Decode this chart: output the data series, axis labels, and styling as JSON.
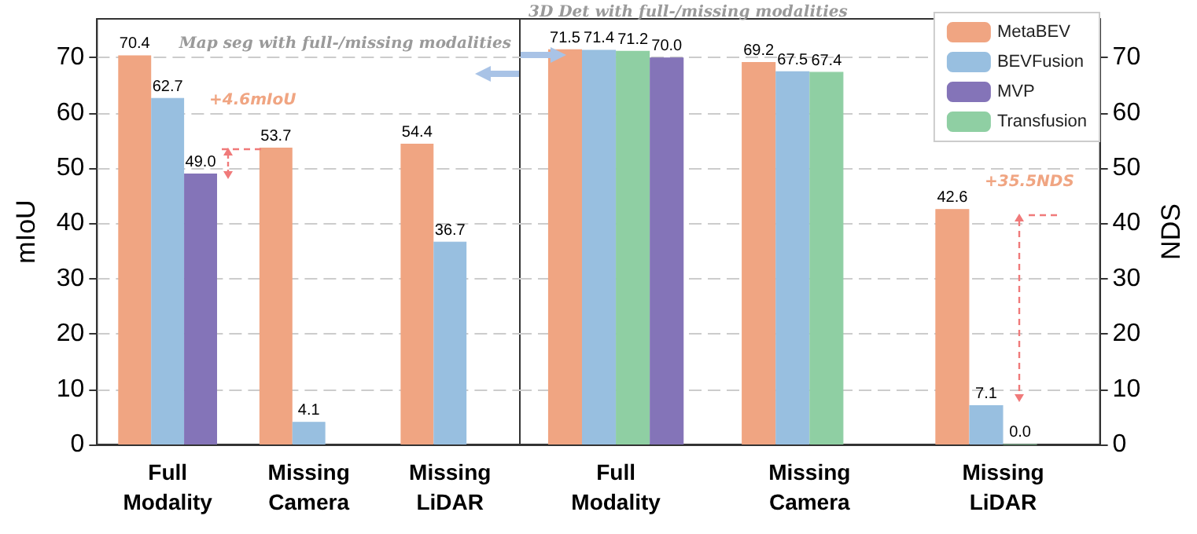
{
  "chart_data": [
    {
      "type": "bar",
      "ylabel": "mIoU",
      "categories": [
        "Full Modality",
        "Missing Camera",
        "Missing LiDAR"
      ],
      "series": [
        {
          "name": "MetaBEV",
          "color": "#f0a582",
          "values": [
            70.4,
            53.7,
            54.4
          ],
          "value_labels": [
            "70.4",
            "53.7",
            "54.4"
          ]
        },
        {
          "name": "BEVFusion",
          "color": "#98bfe0",
          "values": [
            62.7,
            4.1,
            36.7
          ],
          "value_labels": [
            "62.7",
            "4.1",
            "36.7"
          ]
        },
        {
          "name": "MVP",
          "color": "#8474b8",
          "values": [
            49.0,
            null,
            null
          ],
          "value_labels": [
            "49.0",
            null,
            null
          ]
        }
      ],
      "ylim": [
        0,
        77
      ],
      "yticks": [
        0,
        10,
        20,
        30,
        40,
        50,
        60,
        70
      ],
      "grid": "y",
      "legend": false,
      "annotations": [
        "Map seg with full-/missing modalities",
        "+4.6mIoU"
      ]
    },
    {
      "type": "bar",
      "y2label": "NDS",
      "categories": [
        "Full Modality",
        "Missing Camera",
        "Missing LiDAR"
      ],
      "series": [
        {
          "name": "MetaBEV",
          "color": "#f0a582",
          "axis": "y2",
          "values": [
            71.5,
            69.2,
            42.6
          ],
          "value_labels": [
            "71.5",
            "69.2",
            "42.6"
          ]
        },
        {
          "name": "BEVFusion",
          "color": "#98bfe0",
          "axis": "y2",
          "values": [
            71.4,
            67.5,
            7.1
          ],
          "value_labels": [
            "71.4",
            "67.5",
            "7.1"
          ]
        },
        {
          "name": "Transfusion",
          "color": "#8fcfa3",
          "axis": "y2",
          "values": [
            71.2,
            67.4,
            0.0
          ],
          "value_labels": [
            "71.2",
            "67.4",
            "0.0"
          ]
        },
        {
          "name": "MVP",
          "color": "#8474b8",
          "axis": "y2",
          "values": [
            70.0,
            null,
            null
          ],
          "value_labels": [
            "70.0",
            null,
            null
          ]
        }
      ],
      "y2lim": [
        0,
        77
      ],
      "y2ticks": [
        0,
        10,
        20,
        30,
        40,
        50,
        60,
        70
      ],
      "grid": "y",
      "legend": "top right",
      "annotations": [
        "3D Det with full-/missing modalities",
        "+35.5NDS"
      ]
    }
  ]
}
